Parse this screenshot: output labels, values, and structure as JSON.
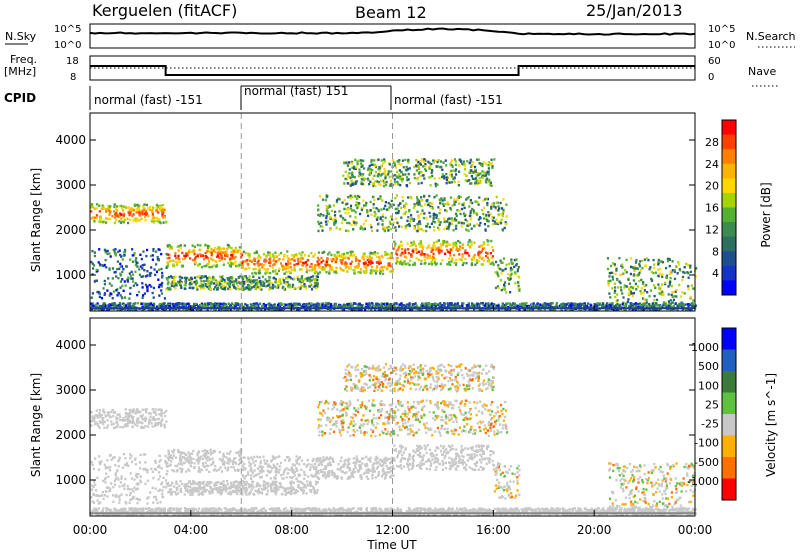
{
  "header": {
    "station": "Kerguelen (fitACF)",
    "beam": "Beam 12",
    "date": "25/Jan/2013"
  },
  "noise_panel": {
    "left_label": "N.Sky",
    "left_ticks": [
      "10^5",
      "10^0"
    ],
    "right_label": "N.Search",
    "right_ticks": [
      "10^5",
      "10^0"
    ]
  },
  "freq_panel": {
    "left_label_line1": "Freq.",
    "left_label_line2": "[MHz]",
    "left_ticks": [
      "18",
      "8"
    ],
    "right_label": "Nave",
    "right_ticks": [
      "60",
      "0"
    ]
  },
  "cpid": {
    "label": "CPID",
    "segments": [
      {
        "text": "normal (fast) -151",
        "start_hour": 0
      },
      {
        "text": "normal (fast) 151",
        "start_hour": 6
      },
      {
        "text": "normal (fast) -151",
        "start_hour": 12
      }
    ]
  },
  "colorbars": {
    "power": {
      "title": "Power [dB]",
      "ticks": [
        "28",
        "24",
        "20",
        "16",
        "12",
        "8",
        "4"
      ],
      "colors": [
        "#ff0000",
        "#ff4000",
        "#ff7f00",
        "#ffb200",
        "#ffd700",
        "#a6d400",
        "#54b030",
        "#3c8c50",
        "#2e7060",
        "#1f4f90",
        "#1633c8",
        "#0000ff"
      ]
    },
    "velocity": {
      "title": "Velocity [m s^-1]",
      "ticks": [
        "1000",
        "500",
        "100",
        "25",
        "-25",
        "-100",
        "-500",
        "-1000"
      ],
      "colors": [
        "#0000ff",
        "#2060c0",
        "#3a7a3a",
        "#60c040",
        "#c8c8c8",
        "#ffb000",
        "#ff7000",
        "#ff0000"
      ]
    }
  },
  "chart_data": {
    "type": "heatmap",
    "x_label": "Time UT",
    "y_label": "Slant Range [km]",
    "x_ticks": [
      "00:00",
      "04:00",
      "08:00",
      "12:00",
      "16:00",
      "20:00",
      "00:00"
    ],
    "y_ticks": [
      "1000",
      "2000",
      "3000",
      "4000"
    ],
    "x_range_hours": [
      0,
      24
    ],
    "y_range_km": [
      200,
      4600
    ],
    "vertical_markers_hours": [
      6,
      12
    ],
    "freq_step": {
      "high_until": 3.0,
      "low_until": 17.0
    },
    "power_bands": [
      {
        "t0": 0.0,
        "t1": 3.0,
        "r0": 2180,
        "r1": 2600,
        "level": "high"
      },
      {
        "t0": 3.0,
        "t1": 6.0,
        "r0": 1200,
        "r1": 1700,
        "level": "high"
      },
      {
        "t0": 6.0,
        "t1": 12.0,
        "r0": 1050,
        "r1": 1550,
        "level": "high"
      },
      {
        "t0": 12.0,
        "t1": 16.0,
        "r0": 1250,
        "r1": 1800,
        "level": "high"
      },
      {
        "t0": 0.0,
        "t1": 3.0,
        "r0": 500,
        "r1": 1600,
        "level": "low"
      },
      {
        "t0": 3.0,
        "t1": 9.0,
        "r0": 700,
        "r1": 1000,
        "level": "mid"
      },
      {
        "t0": 16.0,
        "t1": 17.0,
        "r0": 600,
        "r1": 1400,
        "level": "mid"
      },
      {
        "t0": 20.5,
        "t1": 24.0,
        "r0": 400,
        "r1": 1400,
        "level": "mid"
      },
      {
        "t0": 0.0,
        "t1": 24.0,
        "r0": 250,
        "r1": 400,
        "level": "low"
      },
      {
        "t0": 9.0,
        "t1": 16.5,
        "r0": 2000,
        "r1": 2800,
        "level": "mid"
      },
      {
        "t0": 10.0,
        "t1": 16.0,
        "r0": 3000,
        "r1": 3600,
        "level": "mid"
      }
    ]
  }
}
